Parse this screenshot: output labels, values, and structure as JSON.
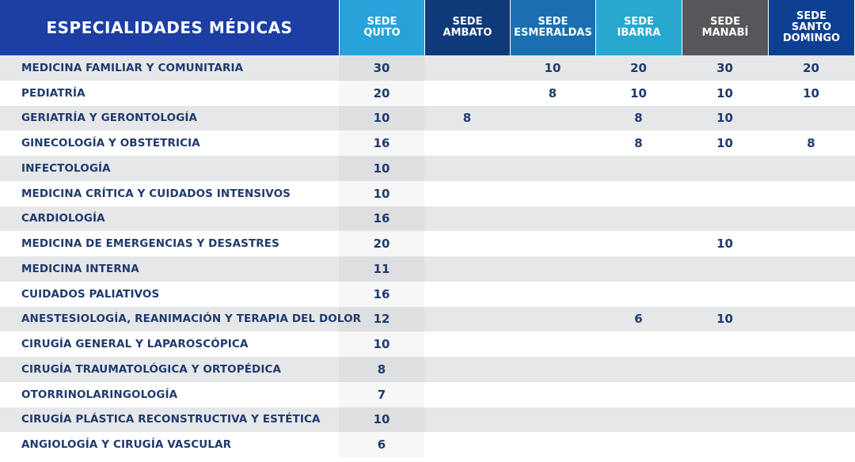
{
  "header": {
    "specialties_title": "ESPECIALIDADES MÉDICAS",
    "sedes": [
      {
        "label": "SEDE QUITO",
        "color": "#27a3da"
      },
      {
        "label": "SEDE AMBATO",
        "color": "#0f3a7a"
      },
      {
        "label": "SEDE ESMERALDAS",
        "color": "#1a6fb0"
      },
      {
        "label": "SEDE IBARRA",
        "color": "#27a8cf"
      },
      {
        "label": "SEDE MANABÍ",
        "color": "#56575b"
      },
      {
        "label": "SEDE SANTO DOMINGO",
        "color": "#0d3f92"
      }
    ],
    "main_color": "#1d3fa4"
  },
  "rows": [
    {
      "name": "MEDICINA FAMILIAR Y COMUNITARIA",
      "values": [
        "30",
        "",
        "10",
        "20",
        "30",
        "20"
      ]
    },
    {
      "name": "PEDIATRÍA",
      "values": [
        "20",
        "",
        "8",
        "10",
        "10",
        "10"
      ]
    },
    {
      "name": "GERIATRÍA Y GERONTOLOGÍA",
      "values": [
        "10",
        "8",
        "",
        "8",
        "10",
        ""
      ]
    },
    {
      "name": "GINECOLOGÍA Y OBSTETRICIA",
      "values": [
        "16",
        "",
        "",
        "8",
        "10",
        "8"
      ]
    },
    {
      "name": "INFECTOLOGÍA",
      "values": [
        "10",
        "",
        "",
        "",
        "",
        ""
      ]
    },
    {
      "name": "MEDICINA CRÍTICA Y CUIDADOS INTENSIVOS",
      "values": [
        "10",
        "",
        "",
        "",
        "",
        ""
      ]
    },
    {
      "name": "CARDIOLOGÍA",
      "values": [
        "16",
        "",
        "",
        "",
        "",
        ""
      ]
    },
    {
      "name": "MEDICINA DE EMERGENCIAS Y DESASTRES",
      "values": [
        "20",
        "",
        "",
        "",
        "10",
        ""
      ]
    },
    {
      "name": "MEDICINA INTERNA",
      "values": [
        "11",
        "",
        "",
        "",
        "",
        ""
      ]
    },
    {
      "name": "CUIDADOS PALIATIVOS",
      "values": [
        "16",
        "",
        "",
        "",
        "",
        ""
      ]
    },
    {
      "name": "ANESTESIOLOGÍA, REANIMACIÓN Y TERAPIA DEL DOLOR",
      "values": [
        "12",
        "",
        "",
        "6",
        "10",
        ""
      ]
    },
    {
      "name": "CIRUGÍA GENERAL Y LAPAROSCÓPICA",
      "values": [
        "10",
        "",
        "",
        "",
        "",
        ""
      ]
    },
    {
      "name": "CIRUGÍA TRAUMATOLÓGICA Y ORTOPÉDICA",
      "values": [
        "8",
        "",
        "",
        "",
        "",
        ""
      ]
    },
    {
      "name": "OTORRINOLARINGOLOGÍA",
      "values": [
        "7",
        "",
        "",
        "",
        "",
        ""
      ]
    },
    {
      "name": "CIRUGÍA PLÁSTICA RECONSTRUCTIVA Y ESTÉTICA",
      "values": [
        "10",
        "",
        "",
        "",
        "",
        ""
      ]
    },
    {
      "name": "ANGIOLOGÍA Y CIRUGÍA VASCULAR",
      "values": [
        "6",
        "",
        "",
        "",
        "",
        ""
      ]
    }
  ]
}
